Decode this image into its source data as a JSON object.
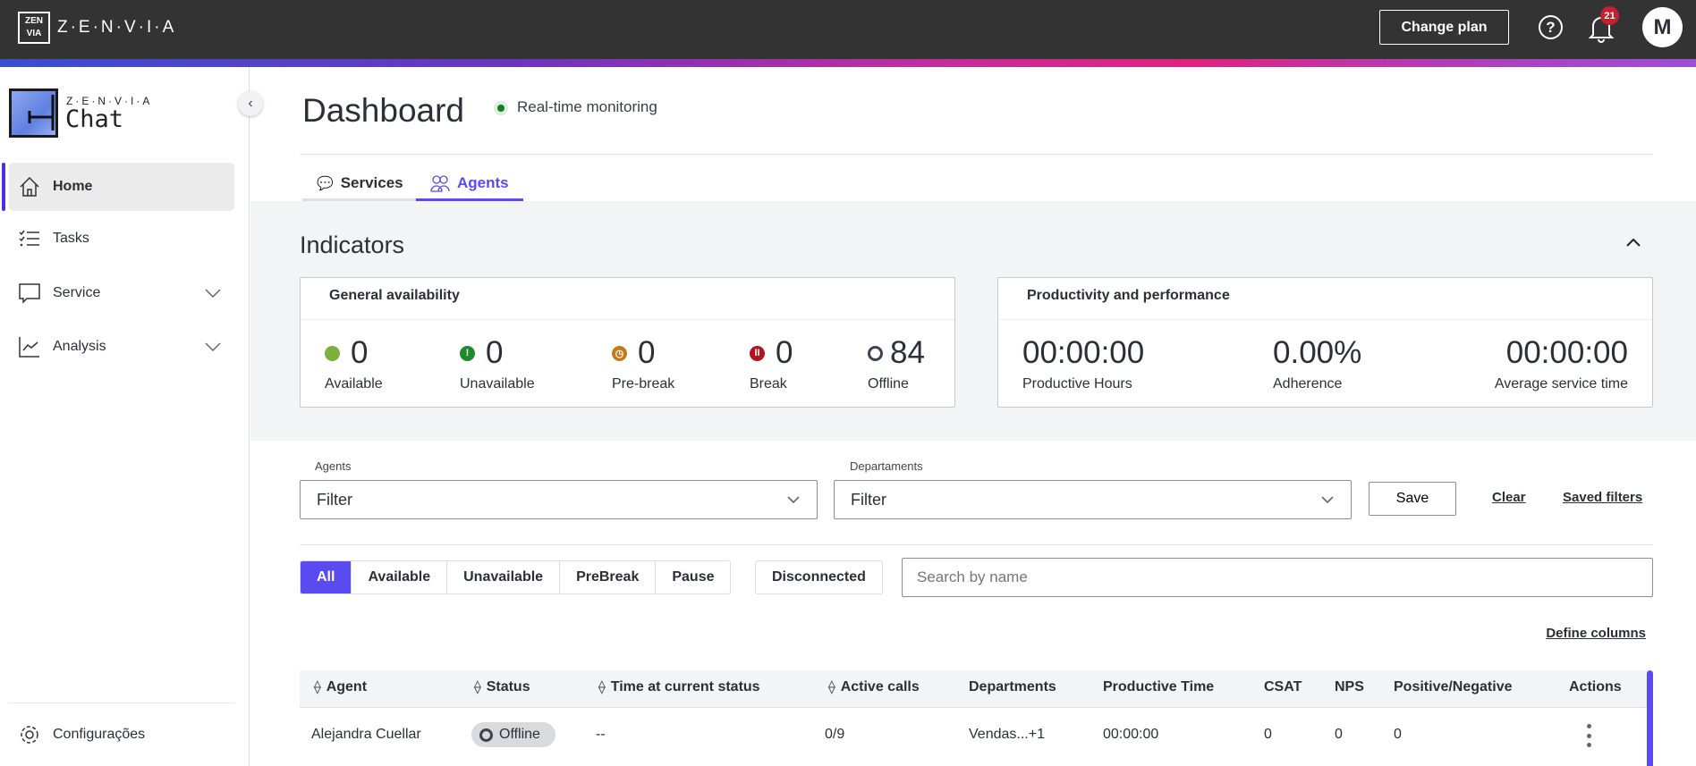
{
  "topbar": {
    "brand": "Z·E·N·V·I·A",
    "brand_logo": "ZEN VIA",
    "change_plan": "Change plan",
    "help_icon": "?",
    "notifications_count": "21",
    "avatar_initial": "M"
  },
  "sidebar": {
    "app_brand": "Z·E·N·V·I·A",
    "app_name": "Chat",
    "items": [
      {
        "label": "Home",
        "icon": "home-icon"
      },
      {
        "label": "Tasks",
        "icon": "tasks-icon"
      },
      {
        "label": "Service",
        "icon": "chat-icon"
      },
      {
        "label": "Analysis",
        "icon": "chart-icon"
      }
    ],
    "settings": "Configurações"
  },
  "header": {
    "title": "Dashboard",
    "realtime": "Real-time monitoring"
  },
  "tabs": [
    {
      "label": "Services"
    },
    {
      "label": "Agents",
      "active": true
    }
  ],
  "indicators": {
    "title": "Indicators",
    "general": {
      "title": "General availability",
      "items": [
        {
          "value": "0",
          "label": "Available",
          "color": "#7bb13c"
        },
        {
          "value": "0",
          "label": "Unavailable",
          "color": "#1d8a2c"
        },
        {
          "value": "0",
          "label": "Pre-break",
          "color": "#c8781a"
        },
        {
          "value": "0",
          "label": "Break",
          "color": "#b5121b"
        },
        {
          "value": "84",
          "label": "Offline",
          "color": "#3d4451"
        }
      ]
    },
    "productivity": {
      "title": "Productivity and performance",
      "items": [
        {
          "value": "00:00:00",
          "label": "Productive Hours"
        },
        {
          "value": "0.00%",
          "label": "Adherence"
        },
        {
          "value": "00:00:00",
          "label": "Average service time"
        }
      ]
    }
  },
  "filters": {
    "agents_label": "Agents",
    "agents_value": "Filter",
    "departments_label": "Departaments",
    "departments_value": "Filter",
    "save": "Save",
    "clear": "Clear",
    "saved_filters": "Saved filters"
  },
  "segments": [
    "All",
    "Available",
    "Unavailable",
    "PreBreak",
    "Pause"
  ],
  "disconnected": "Disconnected",
  "search_placeholder": "Search by name",
  "define_columns": "Define columns",
  "table": {
    "columns": [
      "Agent",
      "Status",
      "Time at current status",
      "Active calls",
      "Departments",
      "Productive Time",
      "CSAT",
      "NPS",
      "Positive/Negative",
      "Actions"
    ],
    "rows": [
      {
        "agent": "Alejandra Cuellar",
        "status": "Offline",
        "time": "--",
        "active_calls": "0/9",
        "departments": "Vendas...+1",
        "productive_time": "00:00:00",
        "csat": "0",
        "nps": "0",
        "pos_neg": "0"
      }
    ]
  },
  "accent": "#5a4bf0"
}
